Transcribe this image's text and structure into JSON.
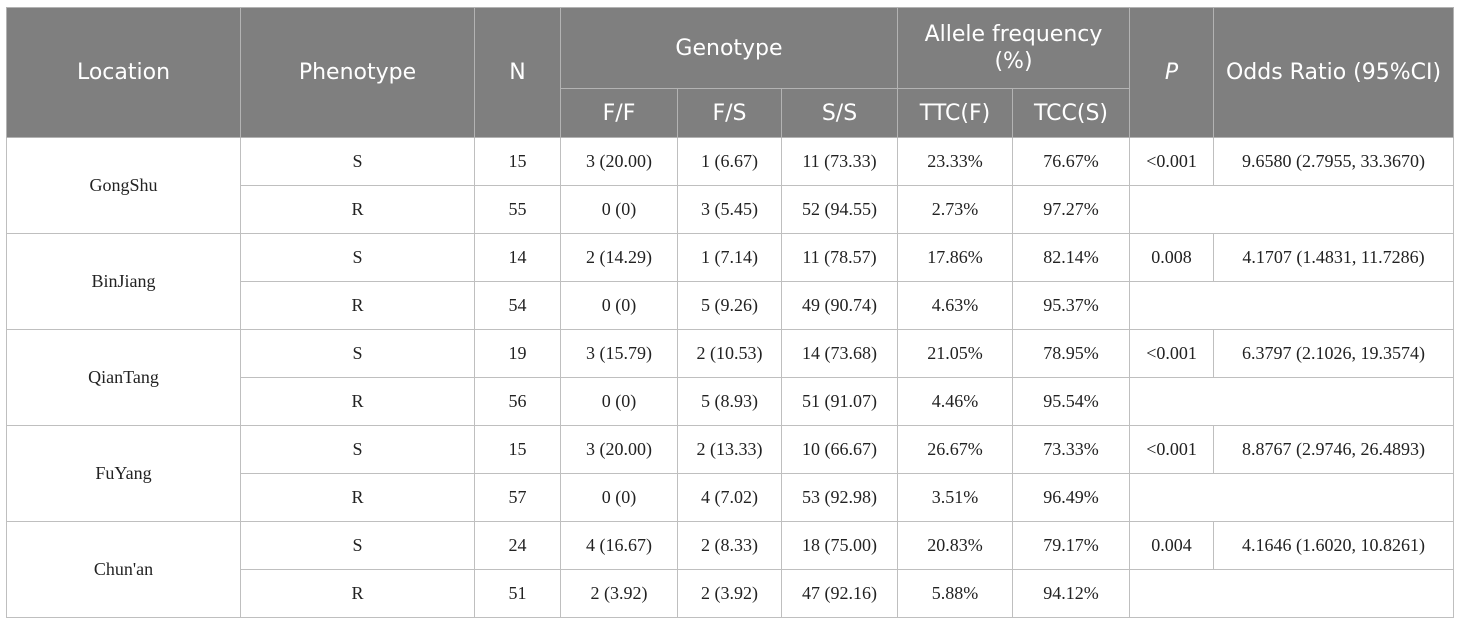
{
  "header": {
    "location": "Location",
    "phenotype": "Phenotype",
    "n": "N",
    "genotype": "Genotype",
    "allele_frequency": "Allele frequency (%)",
    "p": "P",
    "odds_ratio": "Odds Ratio (95%CI)",
    "ff": "F/F",
    "fs": "F/S",
    "ss": "S/S",
    "ttc": "TTC(F)",
    "tcc": "TCC(S)"
  },
  "groups": [
    {
      "location": "GongShu",
      "p": "<0.001",
      "odds_ratio": "9.6580 (2.7955, 33.3670)",
      "rows": [
        {
          "phenotype": "S",
          "n": "15",
          "ff": "3 (20.00)",
          "fs": "1 (6.67)",
          "ss": "11 (73.33)",
          "ttc": "23.33%",
          "tcc": "76.67%"
        },
        {
          "phenotype": "R",
          "n": "55",
          "ff": "0 (0)",
          "fs": "3 (5.45)",
          "ss": "52 (94.55)",
          "ttc": "2.73%",
          "tcc": "97.27%"
        }
      ]
    },
    {
      "location": "BinJiang",
      "p": "0.008",
      "odds_ratio": "4.1707 (1.4831, 11.7286)",
      "rows": [
        {
          "phenotype": "S",
          "n": "14",
          "ff": "2 (14.29)",
          "fs": "1 (7.14)",
          "ss": "11 (78.57)",
          "ttc": "17.86%",
          "tcc": "82.14%"
        },
        {
          "phenotype": "R",
          "n": "54",
          "ff": "0 (0)",
          "fs": "5 (9.26)",
          "ss": "49 (90.74)",
          "ttc": "4.63%",
          "tcc": "95.37%"
        }
      ]
    },
    {
      "location": "QianTang",
      "p": "<0.001",
      "odds_ratio": "6.3797 (2.1026, 19.3574)",
      "rows": [
        {
          "phenotype": "S",
          "n": "19",
          "ff": "3 (15.79)",
          "fs": "2 (10.53)",
          "ss": "14 (73.68)",
          "ttc": "21.05%",
          "tcc": "78.95%"
        },
        {
          "phenotype": "R",
          "n": "56",
          "ff": "0 (0)",
          "fs": "5 (8.93)",
          "ss": "51 (91.07)",
          "ttc": "4.46%",
          "tcc": "95.54%"
        }
      ]
    },
    {
      "location": "FuYang",
      "p": "<0.001",
      "odds_ratio": "8.8767 (2.9746, 26.4893)",
      "rows": [
        {
          "phenotype": "S",
          "n": "15",
          "ff": "3 (20.00)",
          "fs": "2 (13.33)",
          "ss": "10 (66.67)",
          "ttc": "26.67%",
          "tcc": "73.33%"
        },
        {
          "phenotype": "R",
          "n": "57",
          "ff": "0 (0)",
          "fs": "4 (7.02)",
          "ss": "53 (92.98)",
          "ttc": "3.51%",
          "tcc": "96.49%"
        }
      ]
    },
    {
      "location": "Chun'an",
      "p": "0.004",
      "odds_ratio": "4.1646 (1.6020, 10.8261)",
      "rows": [
        {
          "phenotype": "S",
          "n": "24",
          "ff": "4 (16.67)",
          "fs": "2 (8.33)",
          "ss": "18 (75.00)",
          "ttc": "20.83%",
          "tcc": "79.17%"
        },
        {
          "phenotype": "R",
          "n": "51",
          "ff": "2 (3.92)",
          "fs": "2 (3.92)",
          "ss": "47 (92.16)",
          "ttc": "5.88%",
          "tcc": "94.12%"
        }
      ]
    }
  ]
}
